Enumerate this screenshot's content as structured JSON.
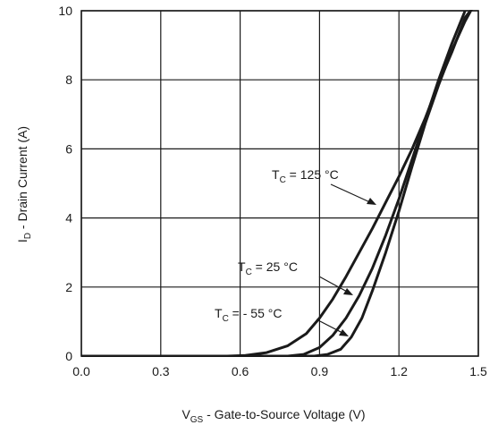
{
  "chart_data": {
    "type": "line",
    "title": "",
    "xlabel_main": "V",
    "xlabel_sub": "GS",
    "xlabel_rest": " - Gate-to-Source Voltage (V)",
    "ylabel_main": "I",
    "ylabel_sub": "D",
    "ylabel_rest": " - Drain Current (A)",
    "xlim": [
      0.0,
      1.5
    ],
    "ylim": [
      0,
      10
    ],
    "x_ticks": [
      "0.0",
      "0.3",
      "0.6",
      "0.9",
      "1.2",
      "1.5"
    ],
    "y_ticks": [
      "0",
      "2",
      "4",
      "6",
      "8",
      "10"
    ],
    "grid": true,
    "series": [
      {
        "name_main": "T",
        "name_sub": "C",
        "name_rest": " = 125 °C",
        "points": [
          [
            0.0,
            0
          ],
          [
            0.55,
            0
          ],
          [
            0.62,
            0.02
          ],
          [
            0.7,
            0.1
          ],
          [
            0.78,
            0.3
          ],
          [
            0.85,
            0.65
          ],
          [
            0.9,
            1.1
          ],
          [
            0.95,
            1.65
          ],
          [
            1.0,
            2.3
          ],
          [
            1.05,
            3.0
          ],
          [
            1.1,
            3.7
          ],
          [
            1.15,
            4.45
          ],
          [
            1.2,
            5.2
          ],
          [
            1.25,
            6.0
          ],
          [
            1.3,
            6.9
          ],
          [
            1.35,
            7.9
          ],
          [
            1.4,
            8.8
          ],
          [
            1.45,
            9.8
          ],
          [
            1.47,
            10.0
          ]
        ]
      },
      {
        "name_main": "T",
        "name_sub": "C",
        "name_rest": " = 25 °C",
        "points": [
          [
            0.0,
            0
          ],
          [
            0.78,
            0
          ],
          [
            0.84,
            0.05
          ],
          [
            0.9,
            0.25
          ],
          [
            0.95,
            0.6
          ],
          [
            1.0,
            1.1
          ],
          [
            1.05,
            1.75
          ],
          [
            1.1,
            2.55
          ],
          [
            1.15,
            3.5
          ],
          [
            1.2,
            4.55
          ],
          [
            1.25,
            5.7
          ],
          [
            1.3,
            6.85
          ],
          [
            1.35,
            8.0
          ],
          [
            1.4,
            9.05
          ],
          [
            1.45,
            10.0
          ]
        ]
      },
      {
        "name_main": "T",
        "name_sub": "C",
        "name_rest": " = - 55 °C",
        "points": [
          [
            0.0,
            0
          ],
          [
            0.88,
            0
          ],
          [
            0.93,
            0.05
          ],
          [
            0.98,
            0.2
          ],
          [
            1.02,
            0.55
          ],
          [
            1.06,
            1.1
          ],
          [
            1.1,
            1.9
          ],
          [
            1.15,
            3.0
          ],
          [
            1.2,
            4.2
          ],
          [
            1.25,
            5.5
          ],
          [
            1.3,
            6.75
          ],
          [
            1.35,
            7.85
          ],
          [
            1.4,
            8.85
          ],
          [
            1.45,
            9.7
          ],
          [
            1.5,
            10.4
          ]
        ]
      }
    ]
  }
}
